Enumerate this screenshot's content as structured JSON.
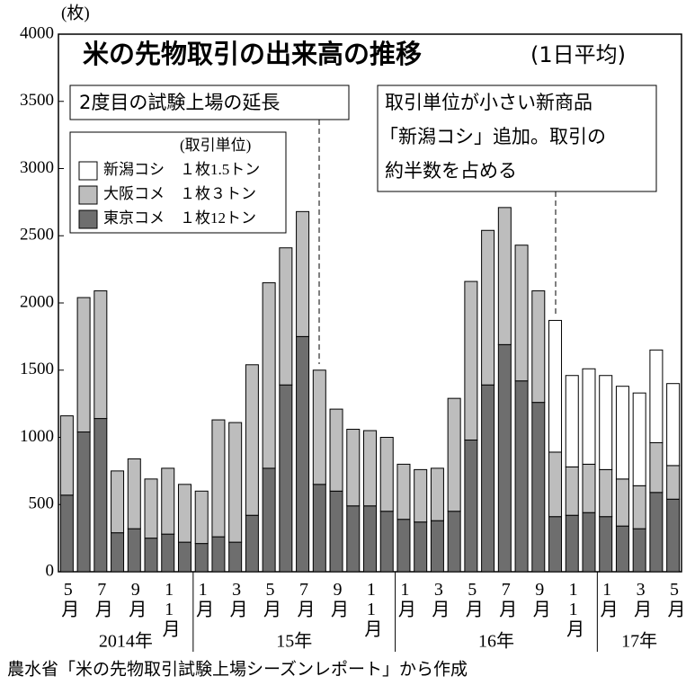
{
  "chart_data": {
    "type": "stacked_bar",
    "title": "米の先物取引の出来高の推移",
    "subtitle": "(1日平均)",
    "y_unit": "(枚)",
    "source": "農水省「米の先物取引試験上場シーズンレポート」から作成",
    "legend_title": "(取引単位)",
    "annotations": [
      "2度目の試験上場の延長",
      "取引単位が小さい新商品",
      "「新潟コシ」追加。取引の",
      "約半数を占める"
    ],
    "categories": [
      "5月",
      null,
      "7月",
      null,
      "9月",
      null,
      "11月",
      null,
      "1月",
      null,
      "3月",
      null,
      "5月",
      null,
      "7月",
      null,
      "9月",
      null,
      "11月",
      null,
      "1月",
      null,
      "3月",
      null,
      "5月",
      null,
      "7月",
      null,
      "9月",
      null,
      "11月",
      null,
      "1月",
      null,
      "3月",
      null,
      "5月"
    ],
    "groups": [
      {
        "label": "2014年",
        "size": 8
      },
      {
        "label": "15年",
        "size": 12
      },
      {
        "label": "16年",
        "size": 12
      },
      {
        "label": "17年",
        "size": 5
      }
    ],
    "series": [
      {
        "name": "東京コメ　１枚12トン",
        "color": "#6e6e6e",
        "values": [
          570,
          1040,
          1140,
          290,
          320,
          250,
          280,
          220,
          210,
          260,
          220,
          420,
          770,
          1390,
          1750,
          650,
          600,
          490,
          490,
          450,
          390,
          370,
          380,
          450,
          980,
          1390,
          1690,
          1420,
          1260,
          410,
          420,
          440,
          410,
          340,
          320,
          590,
          540
        ]
      },
      {
        "name": "大阪コメ　１枚３トン",
        "color": "#bdbdbd",
        "values": [
          590,
          1000,
          950,
          460,
          520,
          440,
          490,
          430,
          390,
          870,
          890,
          1120,
          1380,
          1020,
          930,
          850,
          610,
          570,
          560,
          550,
          410,
          390,
          390,
          840,
          1180,
          1150,
          1020,
          1010,
          830,
          480,
          360,
          360,
          350,
          350,
          320,
          370,
          250
        ]
      },
      {
        "name": "新潟コシ　１枚1.5トン",
        "color": "#ffffff",
        "values": [
          null,
          null,
          null,
          null,
          null,
          null,
          null,
          null,
          null,
          null,
          null,
          null,
          null,
          null,
          null,
          null,
          null,
          null,
          null,
          null,
          null,
          null,
          null,
          null,
          null,
          null,
          null,
          null,
          null,
          980,
          680,
          710,
          700,
          690,
          690,
          690,
          610
        ]
      }
    ],
    "ylim": [
      0,
      4000
    ],
    "yticks": [
      0,
      500,
      1000,
      1500,
      2000,
      2500,
      3000,
      3500,
      4000
    ]
  }
}
